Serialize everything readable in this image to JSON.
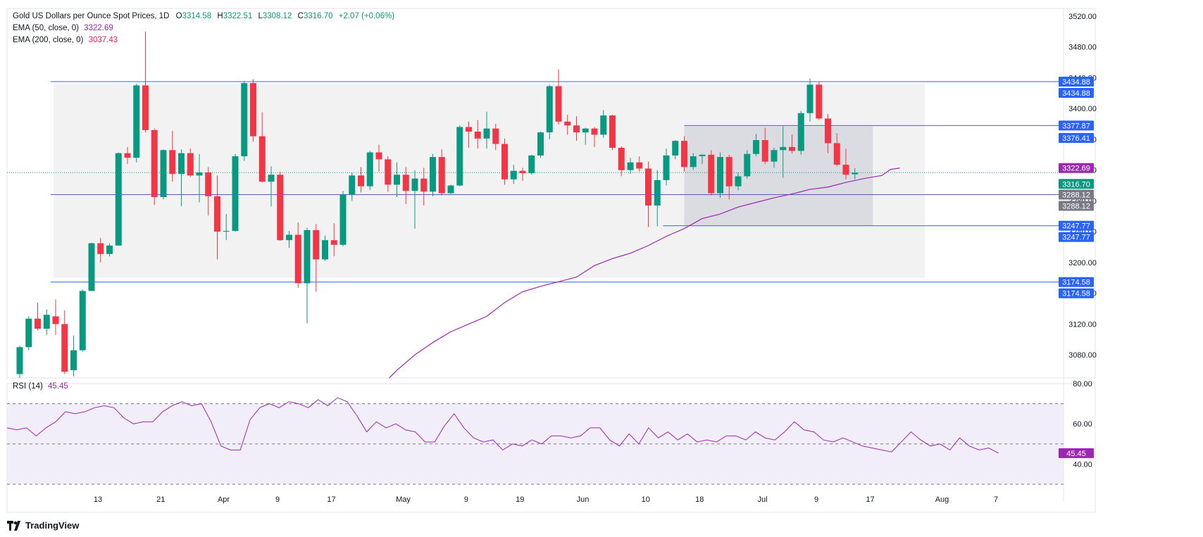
{
  "header": {
    "title": "Gold US Dollars per Ounce Spot Prices, 1D",
    "o_label": "O",
    "o_value": "3314.58",
    "h_label": "H",
    "h_value": "3322.51",
    "l_label": "L",
    "l_value": "3308.12",
    "c_label": "C",
    "c_value": "3316.70",
    "change": "+2.07 (+0.06%)",
    "ema50_label": "EMA (50, close, 0)",
    "ema50_value": "3322.69",
    "ema200_label": "EMA (200, close, 0)",
    "ema200_value": "3037.43",
    "rsi_label": "RSI (14)",
    "rsi_value": "45.45"
  },
  "branding": {
    "name": "TradingView"
  },
  "colors": {
    "up": "#089981",
    "down": "#f23645",
    "ema50": "#9c27b0",
    "ema200": "#e91e63",
    "hline": "#2962ff",
    "rsi": "#9c27b0",
    "rsi_band": "#ede7f6",
    "range_box": "#e8e8ea",
    "inner_box": "#d1d4dc"
  },
  "chart_data": [
    {
      "type": "candlestick",
      "title": "Gold US Dollars per Ounce Spot Prices, 1D",
      "ylim": [
        3050,
        3530
      ],
      "price_ticks": [
        "3520.00",
        "3480.00",
        "3440.00",
        "3400.00",
        "3360.00",
        "3320.00",
        "3280.00",
        "3240.00",
        "3200.00",
        "3160.00",
        "3120.00",
        "3080.00"
      ],
      "x_ticks": [
        "13",
        "21",
        "Apr",
        "9",
        "17",
        "May",
        "9",
        "19",
        "Jun",
        "10",
        "18",
        "Jul",
        "9",
        "17",
        "Aug",
        "7"
      ],
      "candles": [
        {
          "o": 3055,
          "h": 3092,
          "l": 3050,
          "c": 3090
        },
        {
          "o": 3090,
          "h": 3130,
          "l": 3086,
          "c": 3127
        },
        {
          "o": 3127,
          "h": 3148,
          "l": 3112,
          "c": 3114
        },
        {
          "o": 3114,
          "h": 3139,
          "l": 3106,
          "c": 3132
        },
        {
          "o": 3130,
          "h": 3152,
          "l": 3106,
          "c": 3120
        },
        {
          "o": 3120,
          "h": 3138,
          "l": 3055,
          "c": 3058
        },
        {
          "o": 3060,
          "h": 3105,
          "l": 3052,
          "c": 3086
        },
        {
          "o": 3086,
          "h": 3165,
          "l": 3084,
          "c": 3163
        },
        {
          "o": 3163,
          "h": 3226,
          "l": 3163,
          "c": 3225
        },
        {
          "o": 3225,
          "h": 3232,
          "l": 3200,
          "c": 3211
        },
        {
          "o": 3211,
          "h": 3225,
          "l": 3208,
          "c": 3222
        },
        {
          "o": 3222,
          "h": 3343,
          "l": 3222,
          "c": 3342
        },
        {
          "o": 3342,
          "h": 3350,
          "l": 3328,
          "c": 3336
        },
        {
          "o": 3336,
          "h": 3432,
          "l": 3330,
          "c": 3430
        },
        {
          "o": 3430,
          "h": 3500,
          "l": 3369,
          "c": 3372
        },
        {
          "o": 3372,
          "h": 3374,
          "l": 3275,
          "c": 3285
        },
        {
          "o": 3285,
          "h": 3347,
          "l": 3282,
          "c": 3346
        },
        {
          "o": 3346,
          "h": 3371,
          "l": 3305,
          "c": 3315
        },
        {
          "o": 3315,
          "h": 3347,
          "l": 3273,
          "c": 3342
        },
        {
          "o": 3342,
          "h": 3348,
          "l": 3311,
          "c": 3313
        },
        {
          "o": 3313,
          "h": 3341,
          "l": 3278,
          "c": 3317
        },
        {
          "o": 3317,
          "h": 3324,
          "l": 3261,
          "c": 3286
        },
        {
          "o": 3286,
          "h": 3313,
          "l": 3204,
          "c": 3240
        },
        {
          "o": 3240,
          "h": 3263,
          "l": 3229,
          "c": 3241
        },
        {
          "o": 3241,
          "h": 3341,
          "l": 3240,
          "c": 3338
        },
        {
          "o": 3338,
          "h": 3436,
          "l": 3332,
          "c": 3433
        },
        {
          "o": 3433,
          "h": 3438,
          "l": 3357,
          "c": 3364
        },
        {
          "o": 3364,
          "h": 3395,
          "l": 3304,
          "c": 3305
        },
        {
          "o": 3305,
          "h": 3325,
          "l": 3273,
          "c": 3314
        },
        {
          "o": 3314,
          "h": 3318,
          "l": 3228,
          "c": 3229
        },
        {
          "o": 3229,
          "h": 3241,
          "l": 3219,
          "c": 3236
        },
        {
          "o": 3236,
          "h": 3252,
          "l": 3167,
          "c": 3173
        },
        {
          "o": 3173,
          "h": 3245,
          "l": 3121,
          "c": 3242
        },
        {
          "o": 3242,
          "h": 3250,
          "l": 3162,
          "c": 3204
        },
        {
          "o": 3204,
          "h": 3235,
          "l": 3202,
          "c": 3229
        },
        {
          "o": 3229,
          "h": 3251,
          "l": 3208,
          "c": 3223
        },
        {
          "o": 3223,
          "h": 3293,
          "l": 3221,
          "c": 3288
        },
        {
          "o": 3288,
          "h": 3317,
          "l": 3280,
          "c": 3313
        },
        {
          "o": 3313,
          "h": 3324,
          "l": 3291,
          "c": 3299
        },
        {
          "o": 3299,
          "h": 3345,
          "l": 3294,
          "c": 3343
        },
        {
          "o": 3343,
          "h": 3353,
          "l": 3318,
          "c": 3334
        },
        {
          "o": 3334,
          "h": 3338,
          "l": 3292,
          "c": 3301
        },
        {
          "o": 3301,
          "h": 3330,
          "l": 3285,
          "c": 3314
        },
        {
          "o": 3314,
          "h": 3324,
          "l": 3276,
          "c": 3293
        },
        {
          "o": 3293,
          "h": 3320,
          "l": 3244,
          "c": 3309
        },
        {
          "o": 3309,
          "h": 3323,
          "l": 3274,
          "c": 3292
        },
        {
          "o": 3292,
          "h": 3341,
          "l": 3286,
          "c": 3337
        },
        {
          "o": 3337,
          "h": 3347,
          "l": 3287,
          "c": 3290
        },
        {
          "o": 3290,
          "h": 3301,
          "l": 3289,
          "c": 3300
        },
        {
          "o": 3300,
          "h": 3378,
          "l": 3299,
          "c": 3376
        },
        {
          "o": 3376,
          "h": 3383,
          "l": 3349,
          "c": 3370
        },
        {
          "o": 3370,
          "h": 3385,
          "l": 3348,
          "c": 3361
        },
        {
          "o": 3361,
          "h": 3396,
          "l": 3348,
          "c": 3374
        },
        {
          "o": 3374,
          "h": 3380,
          "l": 3346,
          "c": 3354
        },
        {
          "o": 3354,
          "h": 3361,
          "l": 3301,
          "c": 3308
        },
        {
          "o": 3308,
          "h": 3327,
          "l": 3302,
          "c": 3319
        },
        {
          "o": 3319,
          "h": 3323,
          "l": 3306,
          "c": 3316
        },
        {
          "o": 3316,
          "h": 3340,
          "l": 3314,
          "c": 3339
        },
        {
          "o": 3339,
          "h": 3370,
          "l": 3336,
          "c": 3369
        },
        {
          "o": 3369,
          "h": 3431,
          "l": 3360,
          "c": 3429
        },
        {
          "o": 3429,
          "h": 3451,
          "l": 3379,
          "c": 3383
        },
        {
          "o": 3383,
          "h": 3392,
          "l": 3366,
          "c": 3378
        },
        {
          "o": 3378,
          "h": 3390,
          "l": 3358,
          "c": 3369
        },
        {
          "o": 3369,
          "h": 3375,
          "l": 3353,
          "c": 3374
        },
        {
          "o": 3374,
          "h": 3376,
          "l": 3350,
          "c": 3366
        },
        {
          "o": 3366,
          "h": 3398,
          "l": 3362,
          "c": 3391
        },
        {
          "o": 3391,
          "h": 3392,
          "l": 3346,
          "c": 3349
        },
        {
          "o": 3349,
          "h": 3351,
          "l": 3312,
          "c": 3320
        },
        {
          "o": 3320,
          "h": 3336,
          "l": 3315,
          "c": 3330
        },
        {
          "o": 3330,
          "h": 3338,
          "l": 3318,
          "c": 3322
        },
        {
          "o": 3322,
          "h": 3331,
          "l": 3246,
          "c": 3274
        },
        {
          "o": 3274,
          "h": 3320,
          "l": 3247,
          "c": 3307
        },
        {
          "o": 3307,
          "h": 3348,
          "l": 3300,
          "c": 3339
        },
        {
          "o": 3339,
          "h": 3359,
          "l": 3334,
          "c": 3358
        },
        {
          "o": 3358,
          "h": 3364,
          "l": 3318,
          "c": 3324
        },
        {
          "o": 3324,
          "h": 3342,
          "l": 3320,
          "c": 3338
        },
        {
          "o": 3338,
          "h": 3341,
          "l": 3328,
          "c": 3340
        },
        {
          "o": 3340,
          "h": 3346,
          "l": 3287,
          "c": 3290
        },
        {
          "o": 3290,
          "h": 3343,
          "l": 3284,
          "c": 3337
        },
        {
          "o": 3337,
          "h": 3340,
          "l": 3282,
          "c": 3299
        },
        {
          "o": 3299,
          "h": 3317,
          "l": 3294,
          "c": 3312
        },
        {
          "o": 3312,
          "h": 3346,
          "l": 3309,
          "c": 3341
        },
        {
          "o": 3341,
          "h": 3367,
          "l": 3338,
          "c": 3359
        },
        {
          "o": 3359,
          "h": 3375,
          "l": 3328,
          "c": 3331
        },
        {
          "o": 3331,
          "h": 3349,
          "l": 3323,
          "c": 3346
        },
        {
          "o": 3346,
          "h": 3377,
          "l": 3310,
          "c": 3350
        },
        {
          "o": 3350,
          "h": 3366,
          "l": 3342,
          "c": 3345
        },
        {
          "o": 3345,
          "h": 3397,
          "l": 3340,
          "c": 3394
        },
        {
          "o": 3394,
          "h": 3439,
          "l": 3383,
          "c": 3431
        },
        {
          "o": 3431,
          "h": 3435,
          "l": 3385,
          "c": 3387
        },
        {
          "o": 3387,
          "h": 3393,
          "l": 3342,
          "c": 3355
        },
        {
          "o": 3355,
          "h": 3368,
          "l": 3325,
          "c": 3327
        },
        {
          "o": 3327,
          "h": 3348,
          "l": 3308,
          "c": 3314
        },
        {
          "o": 3314.58,
          "h": 3322.51,
          "l": 3308.12,
          "c": 3316.7
        }
      ],
      "ema50": [
        [
          39,
          3025
        ],
        [
          42,
          3060
        ],
        [
          44,
          3080
        ],
        [
          46,
          3096
        ],
        [
          48,
          3110
        ],
        [
          50,
          3120
        ],
        [
          52,
          3130
        ],
        [
          54,
          3148
        ],
        [
          56,
          3162
        ],
        [
          58,
          3169
        ],
        [
          60,
          3175
        ],
        [
          62,
          3181
        ],
        [
          64,
          3196
        ],
        [
          66,
          3205
        ],
        [
          68,
          3212
        ],
        [
          70,
          3222
        ],
        [
          72,
          3234
        ],
        [
          74,
          3244
        ],
        [
          76,
          3257
        ],
        [
          78,
          3263
        ],
        [
          80,
          3272
        ],
        [
          82,
          3278
        ],
        [
          84,
          3284
        ],
        [
          86,
          3289
        ],
        [
          88,
          3295
        ],
        [
          90,
          3298
        ],
        [
          92,
          3304
        ],
        [
          94,
          3309
        ],
        [
          96,
          3313
        ],
        [
          97,
          3321
        ],
        [
          98,
          3322.69
        ]
      ],
      "horizontal_lines": [
        {
          "price": 3434.88,
          "label": "3434.88"
        },
        {
          "price": 3288.12,
          "label": "3288.12"
        },
        {
          "price": 3174.58,
          "label": "3174.58"
        },
        {
          "price": 3377.87,
          "label": "3377.87"
        },
        {
          "price": 3376.41,
          "label": "3376.41"
        },
        {
          "price": 3247.77,
          "label": "3247.77"
        }
      ],
      "range_box": {
        "from_index": 3,
        "to_index": 100,
        "top": 3432,
        "bottom": 3180
      },
      "inner_box": {
        "from_index": 74,
        "to_index": 95,
        "top": 3377,
        "bottom": 3248
      },
      "price_tags": [
        {
          "text": "3434.88",
          "price": 3434.88,
          "color": "#2962ff"
        },
        {
          "text": "3434.88",
          "price": 3434.88,
          "color": "#2962ff"
        },
        {
          "text": "3377.87",
          "price": 3377.87,
          "color": "#2962ff"
        },
        {
          "text": "3376.41",
          "price": 3376.41,
          "color": "#2962ff"
        },
        {
          "text": "3322.69",
          "price": 3322.69,
          "color": "#9c27b0"
        },
        {
          "text": "3316.70",
          "price": 3316.7,
          "color": "#089981"
        },
        {
          "text": "3288.12",
          "price": 3288.12,
          "color": "#787b86"
        },
        {
          "text": "3288.12",
          "price": 3288.12,
          "color": "#787b86"
        },
        {
          "text": "3247.77",
          "price": 3247.77,
          "color": "#2962ff"
        },
        {
          "text": "3247.77",
          "price": 3247.77,
          "color": "#2962ff"
        },
        {
          "text": "3174.58",
          "price": 3174.58,
          "color": "#2962ff"
        },
        {
          "text": "3174.58",
          "price": 3174.58,
          "color": "#2962ff"
        }
      ]
    },
    {
      "type": "line",
      "title": "RSI (14)",
      "ylim": [
        30,
        80
      ],
      "y_ticks": [
        "80.00",
        "60.00",
        "40.00"
      ],
      "levels": [
        70,
        50,
        30
      ],
      "last_value": "45.45",
      "values": [
        58,
        57,
        58,
        54,
        58,
        61,
        66,
        65,
        66,
        68,
        69,
        68,
        63,
        60,
        61,
        61,
        66,
        69,
        71,
        69,
        70,
        61,
        49,
        47,
        47,
        62,
        68,
        70,
        68,
        71,
        70,
        68,
        72,
        69,
        73,
        71,
        64,
        56,
        61,
        58,
        60,
        57,
        56,
        51,
        51,
        59,
        65,
        58,
        53,
        51,
        52,
        47,
        50,
        49,
        52,
        50,
        54,
        54,
        53,
        54,
        58,
        58,
        52,
        49,
        55,
        50,
        58,
        53,
        56,
        52,
        55,
        51,
        52,
        51,
        54,
        54,
        52,
        56,
        53,
        52,
        56,
        61,
        57,
        56,
        52,
        51,
        53,
        51,
        49,
        48,
        47,
        46,
        51,
        56,
        52,
        49,
        50,
        47,
        53,
        49,
        47,
        48,
        45.45
      ]
    }
  ]
}
